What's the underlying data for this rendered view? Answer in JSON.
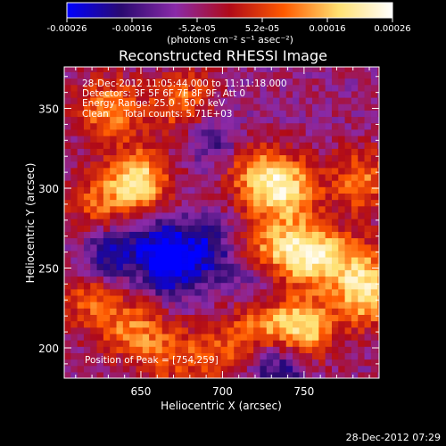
{
  "chart_data": {
    "type": "heatmap",
    "title": "Reconstructed RHESSI Image",
    "xlabel": "Heliocentric X (arcsec)",
    "ylabel": "Heliocentric Y (arcsec)",
    "xlim": [
      603,
      796
    ],
    "ylim": [
      181,
      376
    ],
    "x_ticks": [
      650,
      700,
      750
    ],
    "y_ticks": [
      200,
      250,
      300,
      350
    ],
    "grid": false,
    "colorbar": {
      "orientation": "horizontal",
      "placement": "top",
      "range": [
        -0.00026,
        0.00026
      ],
      "tick_labels": [
        "-0.00026",
        "-0.00016",
        "-5.2e-05",
        "5.2e-05",
        "0.00016",
        "0.00026"
      ],
      "units_label": "(photons cm⁻² s⁻¹ asec⁻²)",
      "colors": [
        "#0000ff",
        "#2a0a70",
        "#8a2aa8",
        "#b00a18",
        "#ff5a00",
        "#ffe070",
        "#ffffff"
      ]
    },
    "annotations": [
      "28-Dec-2012 11:05:44.000 to 11:11:18.000",
      "Detectors: 3F 5F 6F 7F 8F 9F, Att 0",
      "Energy Range: 25.0 - 50.0 keV",
      "Clean     Total counts: 5.71E+03"
    ],
    "peak_label": "Position of Peak = [754,259]",
    "hot_regions": [
      {
        "x": 630,
        "y": 350,
        "value": 0.00018
      },
      {
        "x": 675,
        "y": 355,
        "value": 0.00016
      },
      {
        "x": 648,
        "y": 305,
        "value": 0.00026
      },
      {
        "x": 622,
        "y": 288,
        "value": 0.00012
      },
      {
        "x": 718,
        "y": 310,
        "value": 0.00014
      },
      {
        "x": 738,
        "y": 300,
        "value": 0.00024
      },
      {
        "x": 785,
        "y": 305,
        "value": 0.00016
      },
      {
        "x": 754,
        "y": 259,
        "value": 0.00026
      },
      {
        "x": 728,
        "y": 262,
        "value": 0.00016
      },
      {
        "x": 782,
        "y": 250,
        "value": 0.00014
      },
      {
        "x": 790,
        "y": 232,
        "value": 0.0002
      },
      {
        "x": 748,
        "y": 212,
        "value": 0.00026
      },
      {
        "x": 720,
        "y": 215,
        "value": 0.00014
      },
      {
        "x": 618,
        "y": 232,
        "value": 0.00014
      },
      {
        "x": 645,
        "y": 212,
        "value": 0.00016
      },
      {
        "x": 670,
        "y": 195,
        "value": 0.00012
      },
      {
        "x": 700,
        "y": 195,
        "value": 0.0001
      }
    ],
    "cold_regions": [
      {
        "x": 630,
        "y": 258,
        "value": -0.00016
      },
      {
        "x": 668,
        "y": 250,
        "value": -0.00018
      },
      {
        "x": 690,
        "y": 262,
        "value": -0.00014
      },
      {
        "x": 695,
        "y": 330,
        "value": -0.0001
      },
      {
        "x": 660,
        "y": 268,
        "value": -0.00012
      },
      {
        "x": 735,
        "y": 190,
        "value": -0.00016
      },
      {
        "x": 720,
        "y": 240,
        "value": -0.0001
      }
    ]
  },
  "footer": {
    "timestamp": "28-Dec-2012 07:29"
  }
}
